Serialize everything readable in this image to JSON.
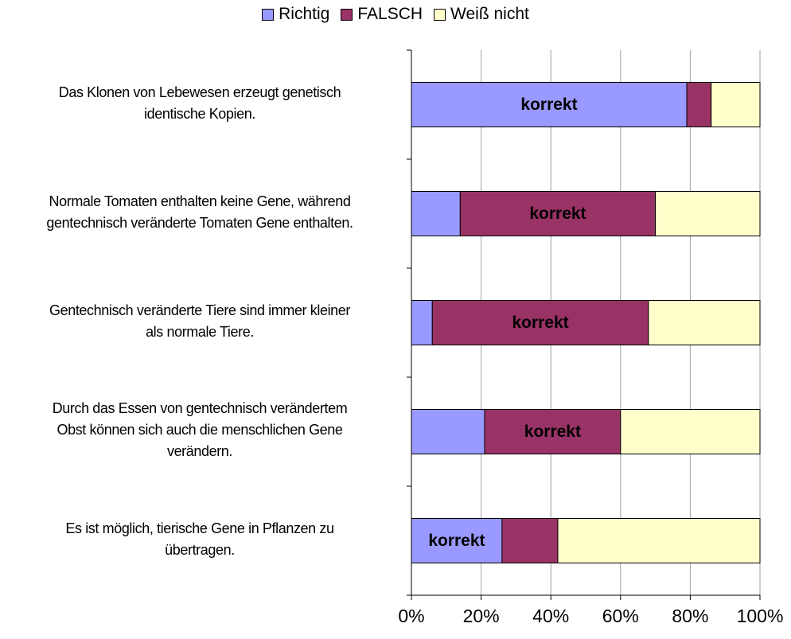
{
  "chart_data": {
    "type": "stacked_bar_horizontal",
    "categories": [
      "Das Klonen von Lebewesen erzeugt genetisch\nidentische Kopien.",
      "Normale Tomaten enthalten keine Gene, während\ngentechnisch veränderte Tomaten Gene enthalten.",
      "Gentechnisch veränderte Tiere sind immer kleiner\nals normale Tiere.",
      "Durch das Essen von gentechnisch verändertem\nObst können sich auch die menschlichen Gene\nverändern.",
      "Es ist möglich, tierische Gene in Pflanzen zu\nübertragen."
    ],
    "series": [
      {
        "name": "Richtig",
        "color": "#9999ff",
        "values": [
          79,
          14,
          6,
          21,
          26
        ]
      },
      {
        "name": "FALSCH",
        "color": "#993366",
        "values": [
          7,
          56,
          62,
          39,
          16
        ]
      },
      {
        "name": "Weiß nicht",
        "color": "#ffffcc",
        "values": [
          14,
          30,
          32,
          40,
          58
        ]
      }
    ],
    "annotations": [
      {
        "text": "korrekt",
        "series": "Richtig"
      },
      {
        "text": "korrekt",
        "series": "FALSCH"
      },
      {
        "text": "korrekt",
        "series": "FALSCH"
      },
      {
        "text": "korrekt",
        "series": "FALSCH"
      },
      {
        "text": "korrekt",
        "series": "Richtig"
      }
    ],
    "xlim": [
      0,
      100
    ],
    "xticks": [
      {
        "value": 0,
        "label": "0%"
      },
      {
        "value": 20,
        "label": "20%"
      },
      {
        "value": 40,
        "label": "40%"
      },
      {
        "value": 60,
        "label": "60%"
      },
      {
        "value": 80,
        "label": "80%"
      },
      {
        "value": 100,
        "label": "100%"
      }
    ],
    "grid": true,
    "legend": "top"
  }
}
